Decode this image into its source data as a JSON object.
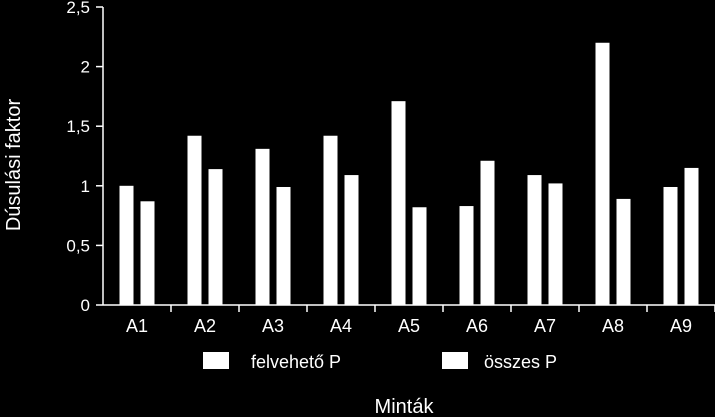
{
  "chart_data": {
    "type": "bar",
    "title": "",
    "xlabel": "Minták",
    "ylabel": "Dúsulási faktor",
    "categories": [
      "A1",
      "A2",
      "A3",
      "A4",
      "A5",
      "A6",
      "A7",
      "A8",
      "A9"
    ],
    "series": [
      {
        "name": "felvehető P",
        "values": [
          1.0,
          1.42,
          1.31,
          1.42,
          1.71,
          0.83,
          1.09,
          2.2,
          0.99
        ]
      },
      {
        "name": "összes P",
        "values": [
          0.87,
          1.14,
          0.99,
          1.09,
          0.82,
          1.21,
          1.02,
          0.89,
          1.15
        ]
      }
    ],
    "yticks": [
      "0",
      "0,5",
      "1",
      "1,5",
      "2",
      "2,5"
    ],
    "ytick_values": [
      0,
      0.5,
      1,
      1.5,
      2,
      2.5
    ],
    "ylim": [
      0,
      2.5
    ],
    "grid": false,
    "legend": "bottom",
    "colors": {
      "background": "#000000",
      "bars": "#ffffff",
      "axis": "#ffffff",
      "text": "#ffffff"
    }
  }
}
